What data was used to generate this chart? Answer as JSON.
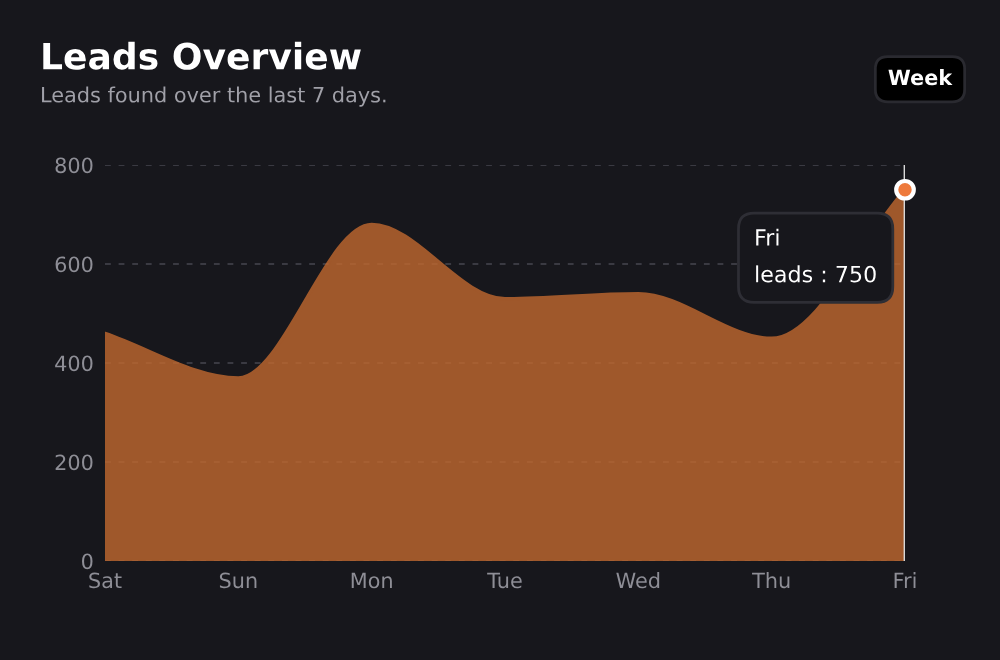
{
  "chart_data": {
    "type": "area",
    "title": "Leads Overview",
    "subtitle": "Leads found over the last 7 days.",
    "categories": [
      "Sat",
      "Sun",
      "Mon",
      "Tue",
      "Wed",
      "Thu",
      "Fri"
    ],
    "series": [
      {
        "color": "#c2692f",
        "values": [
          460,
          370,
          680,
          530,
          540,
          450,
          750
        ]
      },
      {
        "type": "scatter",
        "marker": "circle",
        "color": "#ee7a3c",
        "values": [
          null,
          null,
          null,
          null,
          null,
          null,
          750
        ]
      }
    ],
    "ylim": [
      0,
      800
    ],
    "yticks": [
      0,
      200,
      400,
      600,
      800
    ],
    "grid": "y",
    "legend": false,
    "annotations": [
      "Week",
      {
        "text": "Fri\nleads : 750",
        "x": "Fri",
        "y": 750
      }
    ]
  }
}
